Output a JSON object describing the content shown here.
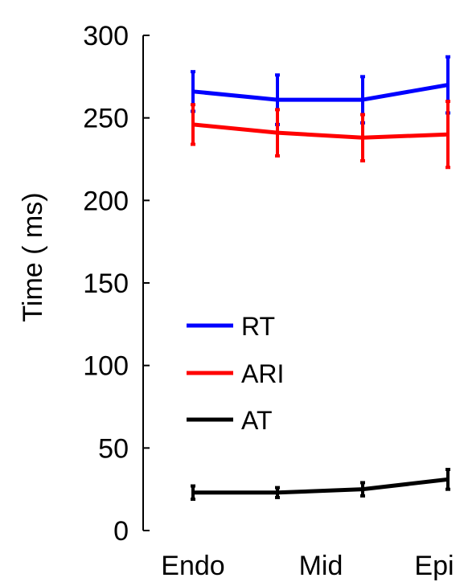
{
  "chart_data": {
    "type": "line",
    "title": "",
    "xlabel": "",
    "ylabel": "Time ( ms)",
    "categories": [
      "Endo",
      "",
      "Mid",
      "Epi"
    ],
    "category_labels": [
      "Endo",
      "Mid",
      "Epi"
    ],
    "ylim": [
      0,
      300
    ],
    "yticks": [
      0,
      50,
      100,
      150,
      200,
      250,
      300
    ],
    "grid": false,
    "legend_position": "center-left",
    "series": [
      {
        "name": "RT",
        "color": "#0000ff",
        "values": [
          266,
          261,
          261,
          270
        ],
        "error": [
          12,
          15,
          14,
          17
        ]
      },
      {
        "name": "ARI",
        "color": "#ff0000",
        "values": [
          246,
          241,
          238,
          240
        ],
        "error": [
          12,
          14,
          14,
          20
        ]
      },
      {
        "name": "AT",
        "color": "#000000",
        "values": [
          23,
          23,
          25,
          31
        ],
        "error": [
          4,
          3,
          4,
          6
        ]
      }
    ]
  }
}
